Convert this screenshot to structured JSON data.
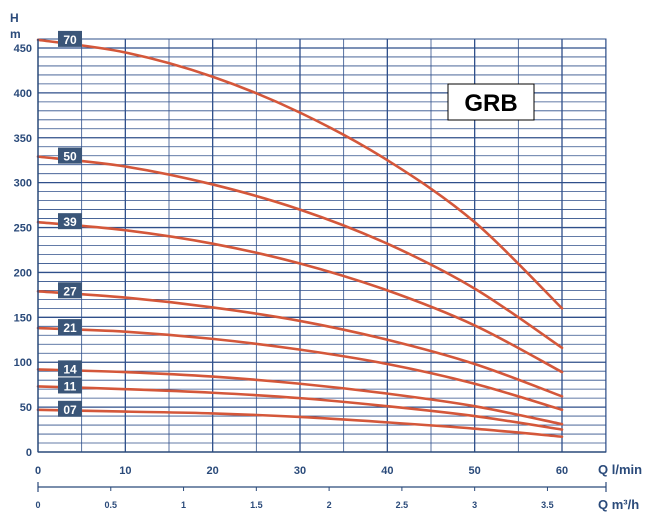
{
  "chart_data": {
    "type": "line",
    "model_label": "GRB",
    "y_axis": {
      "label_top": "H",
      "label_unit": "m",
      "range": [
        0,
        460
      ],
      "ticks": [
        "0",
        "50",
        "100",
        "150",
        "200",
        "250",
        "300",
        "350",
        "400",
        "450"
      ]
    },
    "x_axis": {
      "label": "Q l/min",
      "range": [
        0,
        60
      ],
      "ticks": [
        "0",
        "10",
        "20",
        "30",
        "40",
        "50",
        "60"
      ]
    },
    "x2_axis": {
      "label": "Q m³/h",
      "ticks": [
        "0",
        "0.5",
        "1",
        "1.5",
        "2",
        "2.5",
        "3",
        "3.5"
      ]
    },
    "series": [
      {
        "name": "70",
        "x": [
          0,
          10,
          20,
          30,
          40,
          50,
          60
        ],
        "y": [
          459,
          445,
          418,
          378,
          325,
          256,
          160
        ]
      },
      {
        "name": "50",
        "x": [
          0,
          10,
          20,
          30,
          40,
          50,
          60
        ],
        "y": [
          329,
          318,
          298,
          270,
          232,
          182,
          116
        ]
      },
      {
        "name": "39",
        "x": [
          0,
          10,
          20,
          30,
          40,
          50,
          60
        ],
        "y": [
          256,
          247,
          232,
          210,
          180,
          141,
          89
        ]
      },
      {
        "name": "27",
        "x": [
          0,
          10,
          20,
          30,
          40,
          50,
          60
        ],
        "y": [
          179,
          172,
          161,
          146,
          125,
          98,
          62
        ]
      },
      {
        "name": "21",
        "x": [
          0,
          10,
          20,
          30,
          40,
          50,
          60
        ],
        "y": [
          138,
          134,
          126,
          114,
          98,
          76,
          47
        ]
      },
      {
        "name": "14",
        "x": [
          0,
          10,
          20,
          30,
          40,
          50,
          60
        ],
        "y": [
          92,
          89,
          84,
          76,
          65,
          51,
          31
        ]
      },
      {
        "name": "11",
        "x": [
          0,
          10,
          20,
          30,
          40,
          50,
          60
        ],
        "y": [
          73,
          70,
          66,
          60,
          51,
          40,
          25
        ]
      },
      {
        "name": "07",
        "x": [
          0,
          10,
          20,
          30,
          40,
          50,
          60
        ],
        "y": [
          47,
          45,
          43,
          39,
          33,
          26,
          17
        ]
      }
    ],
    "colors": {
      "curve": "#d4573a",
      "grid": "#2f4f8a",
      "label_box": "#3a5578",
      "axis_text": "#2a4a7a"
    },
    "grid": true
  }
}
